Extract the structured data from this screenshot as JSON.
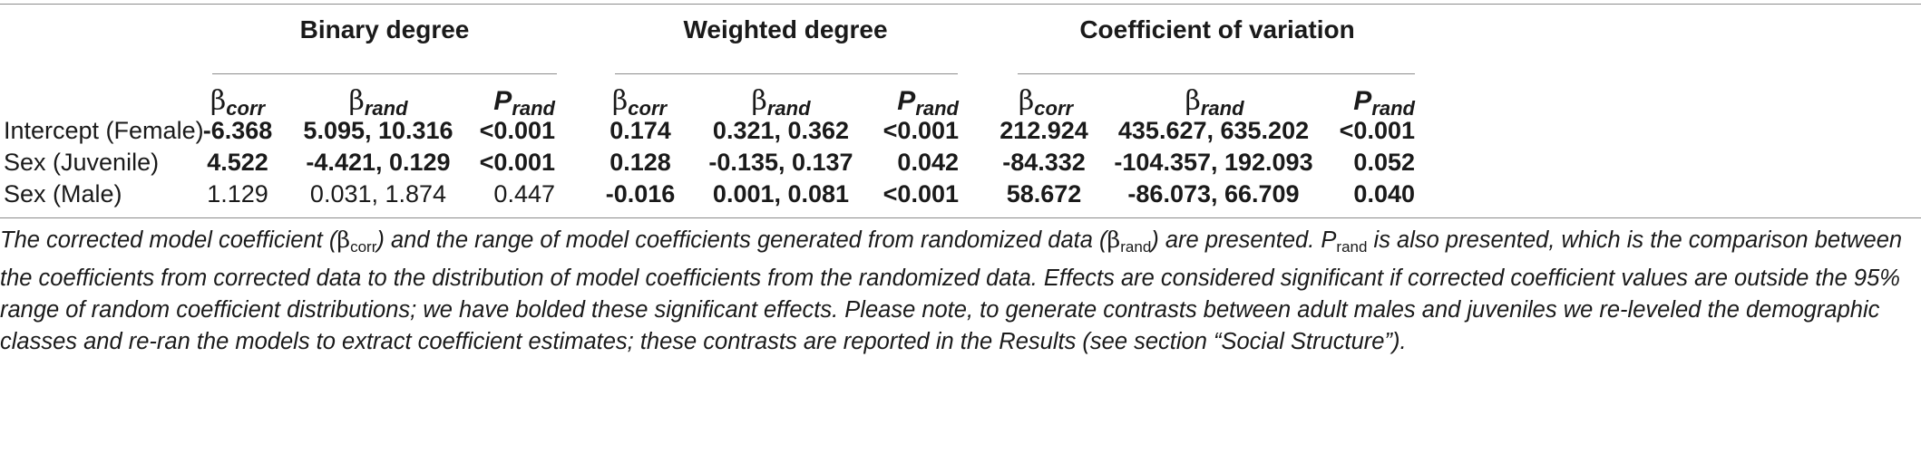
{
  "groups": [
    {
      "label": "Binary degree"
    },
    {
      "label": "Weighted degree"
    },
    {
      "label": "Coefficient of variation"
    }
  ],
  "subheaders": {
    "beta": "β",
    "corr": "corr",
    "rand": "rand",
    "p": "P"
  },
  "rows": [
    {
      "label": "Intercept (Female)",
      "cells": [
        "-6.368",
        "5.095, 10.316",
        "<0.001",
        "0.174",
        "0.321, 0.362",
        "<0.001",
        "212.924",
        "435.627, 635.202",
        "<0.001"
      ]
    },
    {
      "label": "Sex (Juvenile)",
      "cells": [
        "4.522",
        "-4.421, 0.129",
        "<0.001",
        "0.128",
        "-0.135, 0.137",
        "0.042",
        "-84.332",
        "-104.357, 192.093",
        "0.052"
      ]
    },
    {
      "label": "Sex (Male)",
      "cells": [
        "1.129",
        "0.031, 1.874",
        "0.447",
        "-0.016",
        "0.001, 0.081",
        "<0.001",
        "58.672",
        "-86.073, 66.709",
        "0.040"
      ]
    }
  ],
  "caption": {
    "part1": "The corrected model coefficient (",
    "beta": "β",
    "corr": "corr",
    "part2": ") and the range of model coefficients generated from randomized data (",
    "rand": "rand",
    "part3": ") are presented. P",
    "part4": " is also presented, which is the comparison between the coefficients from corrected data to the distribution of model coefficients from the randomized data. Effects are considered significant if corrected coefficient values are outside the 95% range of random coefficient distributions; we have bolded these significant effects. Please note, to generate contrasts between adult males and juveniles we re-leveled the demographic classes and re-ran the models to extract coefficient estimates; these contrasts are reported in the Results (see section “Social Structure”)."
  }
}
